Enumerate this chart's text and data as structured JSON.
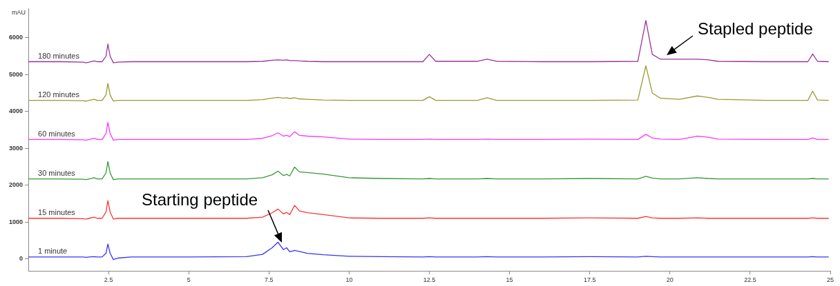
{
  "chart_data": {
    "type": "line",
    "ylabel": "mAU",
    "x": [
      0,
      1.0,
      1.7,
      1.8,
      1.9,
      2.05,
      2.15,
      2.3,
      2.42,
      2.48,
      2.55,
      2.65,
      2.8,
      3.2,
      5,
      6.8,
      7.3,
      7.6,
      7.78,
      7.95,
      8.05,
      8.15,
      8.3,
      8.45,
      8.7,
      9.2,
      10.0,
      11,
      12.3,
      12.5,
      12.7,
      14.0,
      14.3,
      14.6,
      16,
      17.5,
      19.0,
      19.25,
      19.45,
      19.7,
      20.3,
      20.85,
      21.2,
      21.5,
      23,
      24.3,
      24.45,
      24.6,
      24.95
    ],
    "series": [
      {
        "name": "180 minutes",
        "color": "#993399",
        "values": [
          5350,
          5350,
          5340,
          5320,
          5340,
          5370,
          5350,
          5350,
          5500,
          5830,
          5500,
          5320,
          5340,
          5350,
          5350,
          5350,
          5360,
          5390,
          5400,
          5390,
          5400,
          5380,
          5380,
          5370,
          5360,
          5350,
          5350,
          5350,
          5350,
          5550,
          5360,
          5360,
          5420,
          5360,
          5350,
          5350,
          5360,
          6470,
          5550,
          5420,
          5420,
          5420,
          5400,
          5360,
          5350,
          5350,
          5560,
          5360,
          5350
        ]
      },
      {
        "name": "120 minutes",
        "color": "#999933",
        "values": [
          4300,
          4300,
          4290,
          4280,
          4300,
          4330,
          4300,
          4300,
          4450,
          4760,
          4450,
          4280,
          4300,
          4300,
          4300,
          4300,
          4320,
          4360,
          4380,
          4360,
          4370,
          4350,
          4370,
          4340,
          4330,
          4310,
          4300,
          4300,
          4300,
          4400,
          4300,
          4300,
          4370,
          4300,
          4300,
          4300,
          4310,
          5240,
          4500,
          4360,
          4330,
          4420,
          4380,
          4330,
          4300,
          4300,
          4550,
          4310,
          4300
        ]
      },
      {
        "name": "60 minutes",
        "color": "#ff33ff",
        "values": [
          3240,
          3240,
          3230,
          3220,
          3240,
          3270,
          3240,
          3240,
          3400,
          3700,
          3400,
          3220,
          3240,
          3240,
          3240,
          3240,
          3270,
          3340,
          3420,
          3330,
          3350,
          3320,
          3450,
          3350,
          3330,
          3310,
          3250,
          3240,
          3240,
          3250,
          3240,
          3240,
          3250,
          3240,
          3240,
          3250,
          3240,
          3380,
          3280,
          3250,
          3240,
          3330,
          3300,
          3250,
          3240,
          3240,
          3280,
          3240,
          3240
        ]
      },
      {
        "name": "30 minutes",
        "color": "#339933",
        "values": [
          2170,
          2170,
          2160,
          2150,
          2170,
          2200,
          2170,
          2170,
          2330,
          2640,
          2330,
          2150,
          2170,
          2170,
          2170,
          2170,
          2200,
          2280,
          2380,
          2260,
          2290,
          2250,
          2490,
          2360,
          2340,
          2300,
          2200,
          2180,
          2170,
          2180,
          2170,
          2170,
          2180,
          2170,
          2170,
          2180,
          2170,
          2240,
          2190,
          2170,
          2170,
          2200,
          2180,
          2170,
          2170,
          2170,
          2180,
          2170,
          2170
        ]
      },
      {
        "name": "15 minutes",
        "color": "#ff3333",
        "values": [
          1100,
          1100,
          1090,
          1080,
          1100,
          1130,
          1100,
          1100,
          1270,
          1580,
          1270,
          1080,
          1100,
          1100,
          1100,
          1100,
          1130,
          1250,
          1350,
          1220,
          1260,
          1200,
          1450,
          1300,
          1250,
          1200,
          1110,
          1100,
          1100,
          1110,
          1100,
          1100,
          1100,
          1100,
          1100,
          1110,
          1100,
          1150,
          1110,
          1100,
          1100,
          1110,
          1100,
          1100,
          1100,
          1100,
          1110,
          1100,
          1100
        ]
      },
      {
        "name": "1 minute",
        "color": "#3333ff",
        "values": [
          50,
          50,
          50,
          40,
          50,
          60,
          50,
          50,
          150,
          400,
          150,
          -20,
          20,
          50,
          50,
          60,
          120,
          300,
          450,
          250,
          300,
          190,
          230,
          200,
          150,
          110,
          70,
          60,
          50,
          60,
          50,
          50,
          60,
          50,
          50,
          60,
          50,
          70,
          60,
          50,
          50,
          50,
          50,
          50,
          50,
          50,
          60,
          50,
          50
        ]
      }
    ],
    "xlim": [
      0,
      25
    ],
    "xticks": [
      2.5,
      5,
      7.5,
      10,
      12.5,
      15,
      17.5,
      20,
      22.5,
      25
    ],
    "ylim": [
      -330,
      6800
    ],
    "yticks": [
      0,
      1000,
      2000,
      3000,
      4000,
      5000,
      6000
    ],
    "grid": false,
    "legend": false,
    "marker": "none",
    "line_style": "solid",
    "annotations": [
      "Stapled peptide",
      "Starting peptide"
    ]
  }
}
